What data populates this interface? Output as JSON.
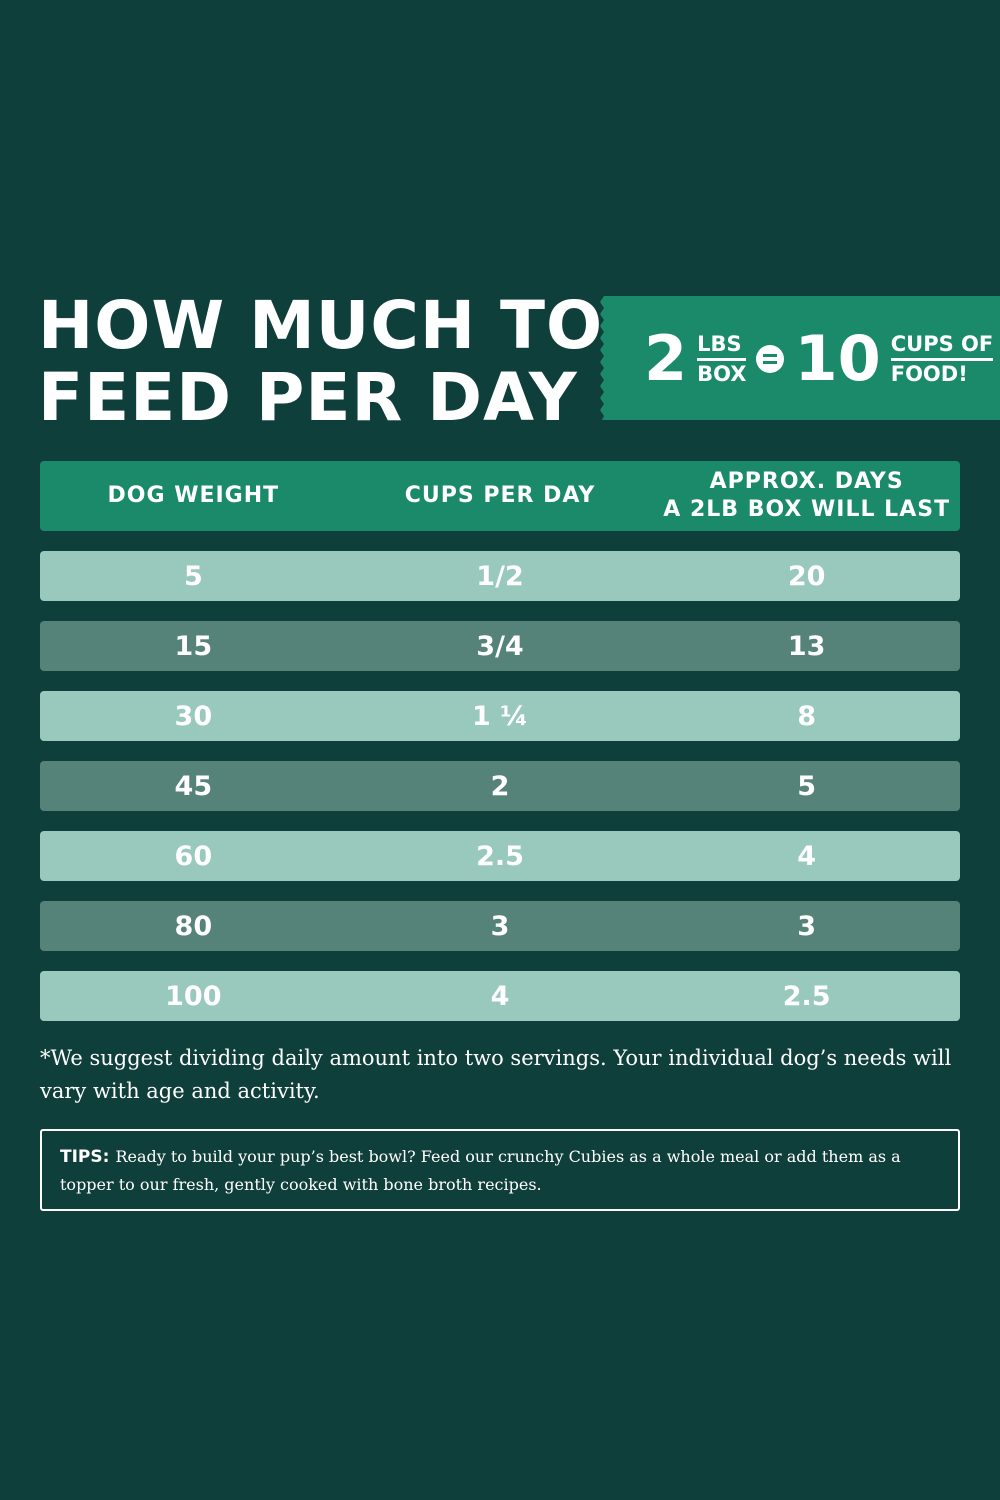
{
  "title": {
    "line1": "HOW MUCH TO",
    "line2": "FEED PER DAY"
  },
  "badge": {
    "left_number": "2",
    "left_unit_top": "LBS",
    "left_unit_bottom": "BOX",
    "right_number": "10",
    "right_unit_top": "CUPS OF",
    "right_unit_bottom": "FOOD!"
  },
  "table": {
    "headers": [
      "DOG WEIGHT",
      "CUPS PER DAY",
      "APPROX. DAYS\nA 2LB BOX WILL LAST"
    ],
    "rows": [
      [
        "5",
        "1/2",
        "20"
      ],
      [
        "15",
        "3/4",
        "13"
      ],
      [
        "30",
        "1 ¼",
        "8"
      ],
      [
        "45",
        "2",
        "5"
      ],
      [
        "60",
        "2.5",
        "4"
      ],
      [
        "80",
        "3",
        "3"
      ],
      [
        "100",
        "4",
        "2.5"
      ]
    ]
  },
  "note": "*We suggest dividing daily amount into two servings. Your individual dog’s needs will vary with age and activity.",
  "tips": {
    "label": "TIPS:",
    "text": "Ready to build your pup’s best bowl? Feed our crunchy Cubies as a whole meal or add them as a topper to our fresh, gently cooked with bone broth recipes."
  },
  "colors": {
    "background": "#0f3f3b",
    "accent": "#1b8a6b",
    "row_light": "#99c9bc",
    "row_dark": "#558379"
  }
}
